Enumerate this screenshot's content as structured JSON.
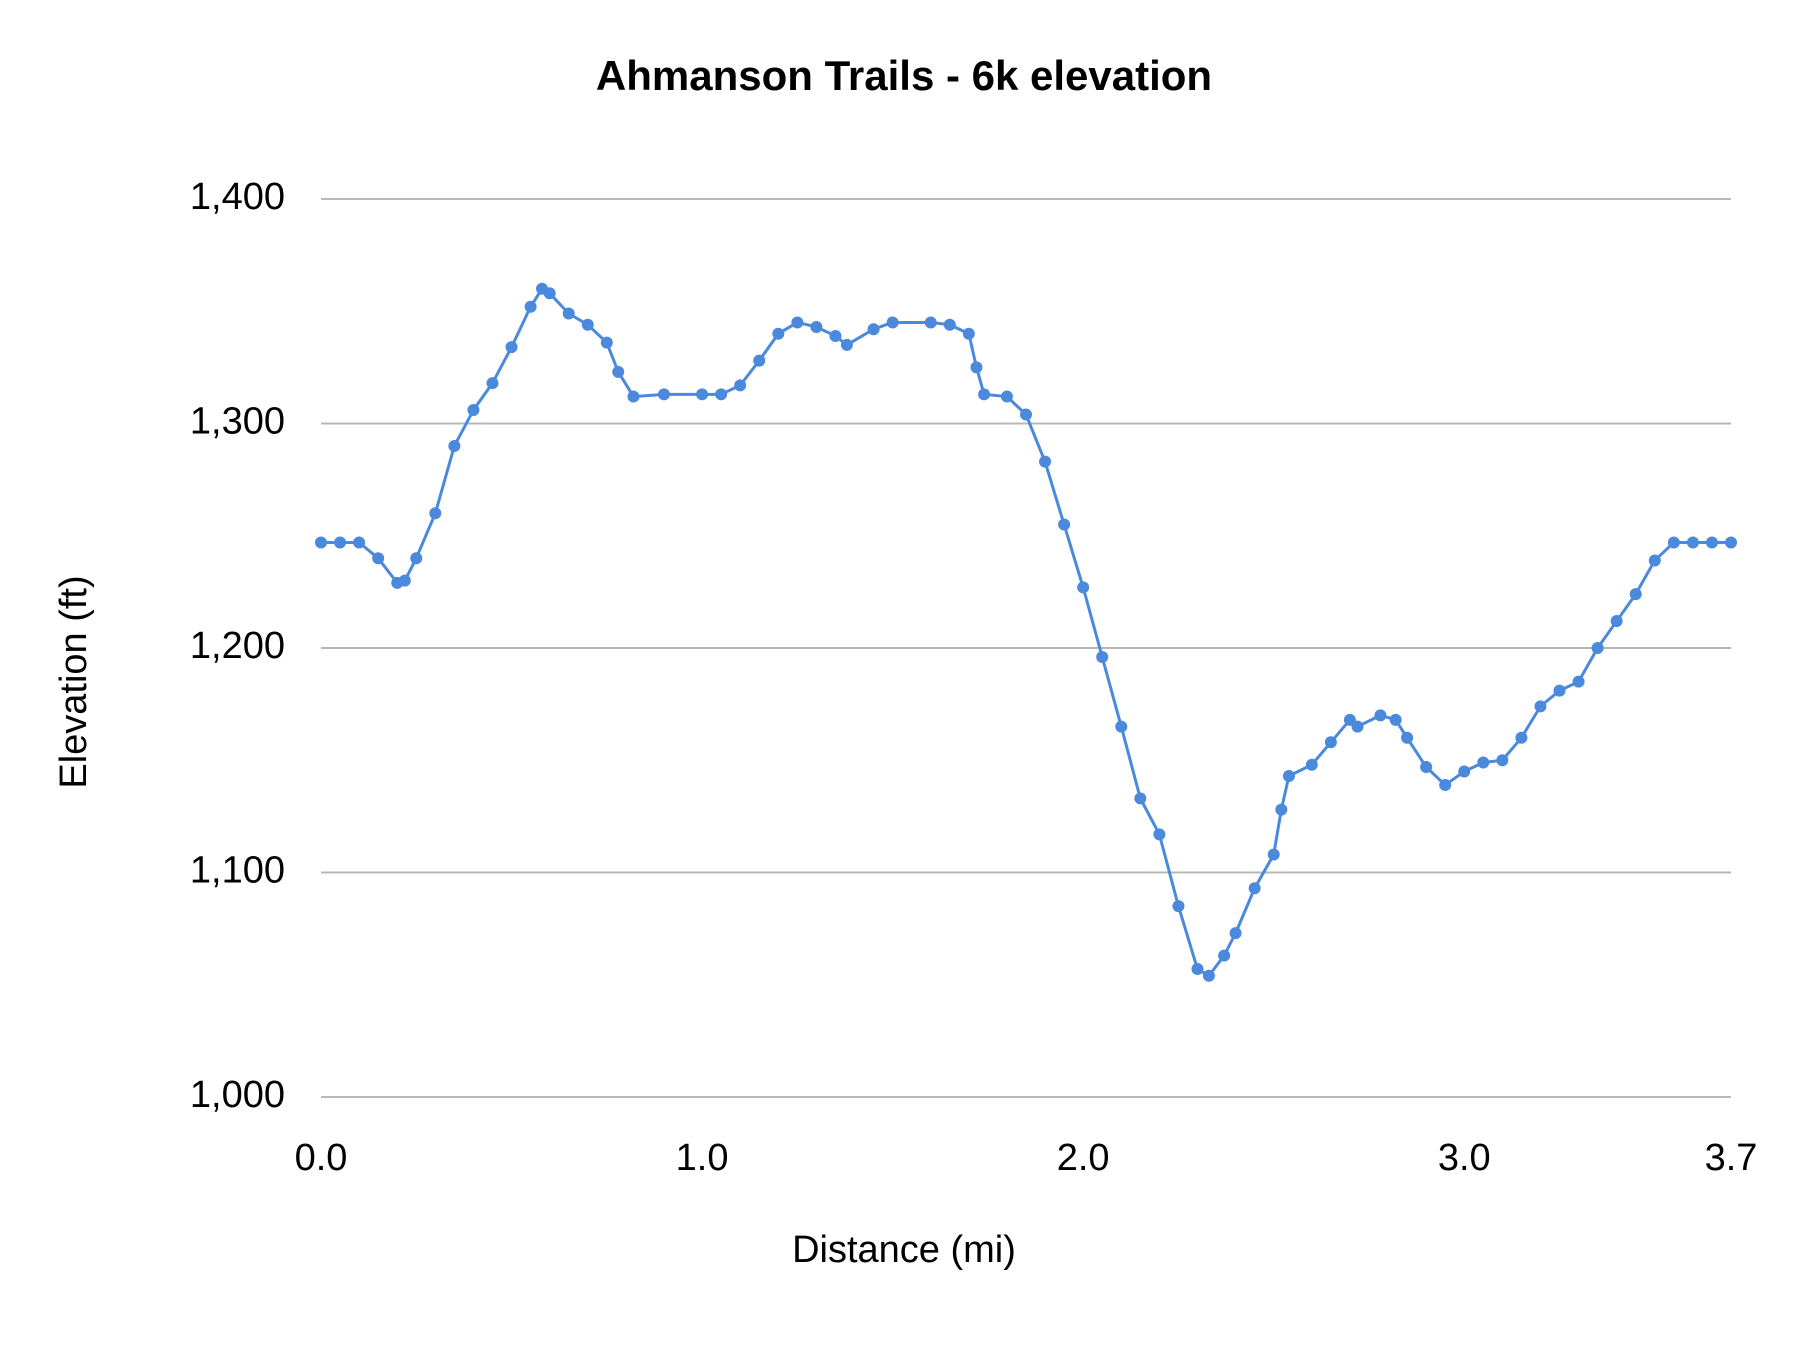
{
  "chart_data": {
    "type": "line",
    "title": "Ahmanson Trails - 6k elevation",
    "x_label": "Distance (mi)",
    "y_label": "Elevation (ft)",
    "color": "#4a89dc",
    "grid": true,
    "x": [
      0,
      0.05,
      0.1,
      0.15,
      0.2,
      0.22,
      0.25,
      0.3,
      0.35,
      0.4,
      0.45,
      0.5,
      0.55,
      0.58,
      0.6,
      0.65,
      0.7,
      0.75,
      0.78,
      0.82,
      0.9,
      1.0,
      1.05,
      1.1,
      1.15,
      1.2,
      1.25,
      1.3,
      1.35,
      1.38,
      1.45,
      1.5,
      1.6,
      1.65,
      1.7,
      1.72,
      1.74,
      1.8,
      1.85,
      1.9,
      1.95,
      2.0,
      2.05,
      2.1,
      2.15,
      2.2,
      2.25,
      2.3,
      2.33,
      2.37,
      2.4,
      2.45,
      2.5,
      2.52,
      2.54,
      2.6,
      2.65,
      2.7,
      2.72,
      2.78,
      2.82,
      2.85,
      2.9,
      2.95,
      3.0,
      3.05,
      3.1,
      3.15,
      3.2,
      3.25,
      3.3,
      3.35,
      3.4,
      3.45,
      3.5,
      3.55,
      3.6,
      3.65,
      3.7
    ],
    "values": [
      1247,
      1247,
      1247,
      1240,
      1229,
      1230,
      1240,
      1260,
      1290,
      1306,
      1318,
      1334,
      1352,
      1360,
      1358,
      1349,
      1344,
      1336,
      1323,
      1312,
      1313,
      1313,
      1313,
      1317,
      1328,
      1340,
      1345,
      1343,
      1339,
      1335,
      1342,
      1345,
      1345,
      1344,
      1340,
      1325,
      1313,
      1312,
      1304,
      1283,
      1255,
      1227,
      1196,
      1165,
      1133,
      1117,
      1085,
      1057,
      1054,
      1063,
      1073,
      1093,
      1108,
      1128,
      1143,
      1148,
      1158,
      1168,
      1165,
      1170,
      1168,
      1160,
      1147,
      1139,
      1145,
      1149,
      1150,
      1160,
      1174,
      1181,
      1185,
      1200,
      1212,
      1224,
      1239,
      1247,
      1247,
      1247,
      1247
    ],
    "xlim": [
      0,
      3.7
    ],
    "xticks": [
      {
        "value": 0,
        "label": "0.0"
      },
      {
        "value": 1,
        "label": "1.0"
      },
      {
        "value": 2,
        "label": "2.0"
      },
      {
        "value": 3,
        "label": "3.0"
      },
      3.7
    ],
    "ylim": [
      1000,
      1400
    ],
    "yticks": [
      {
        "value": 1000,
        "label": "1,000"
      },
      {
        "value": 1100,
        "label": "1,100"
      },
      {
        "value": 1200,
        "label": "1,200"
      },
      {
        "value": 1300,
        "label": "1,300"
      },
      {
        "value": 1400,
        "label": "1,400"
      }
    ]
  }
}
